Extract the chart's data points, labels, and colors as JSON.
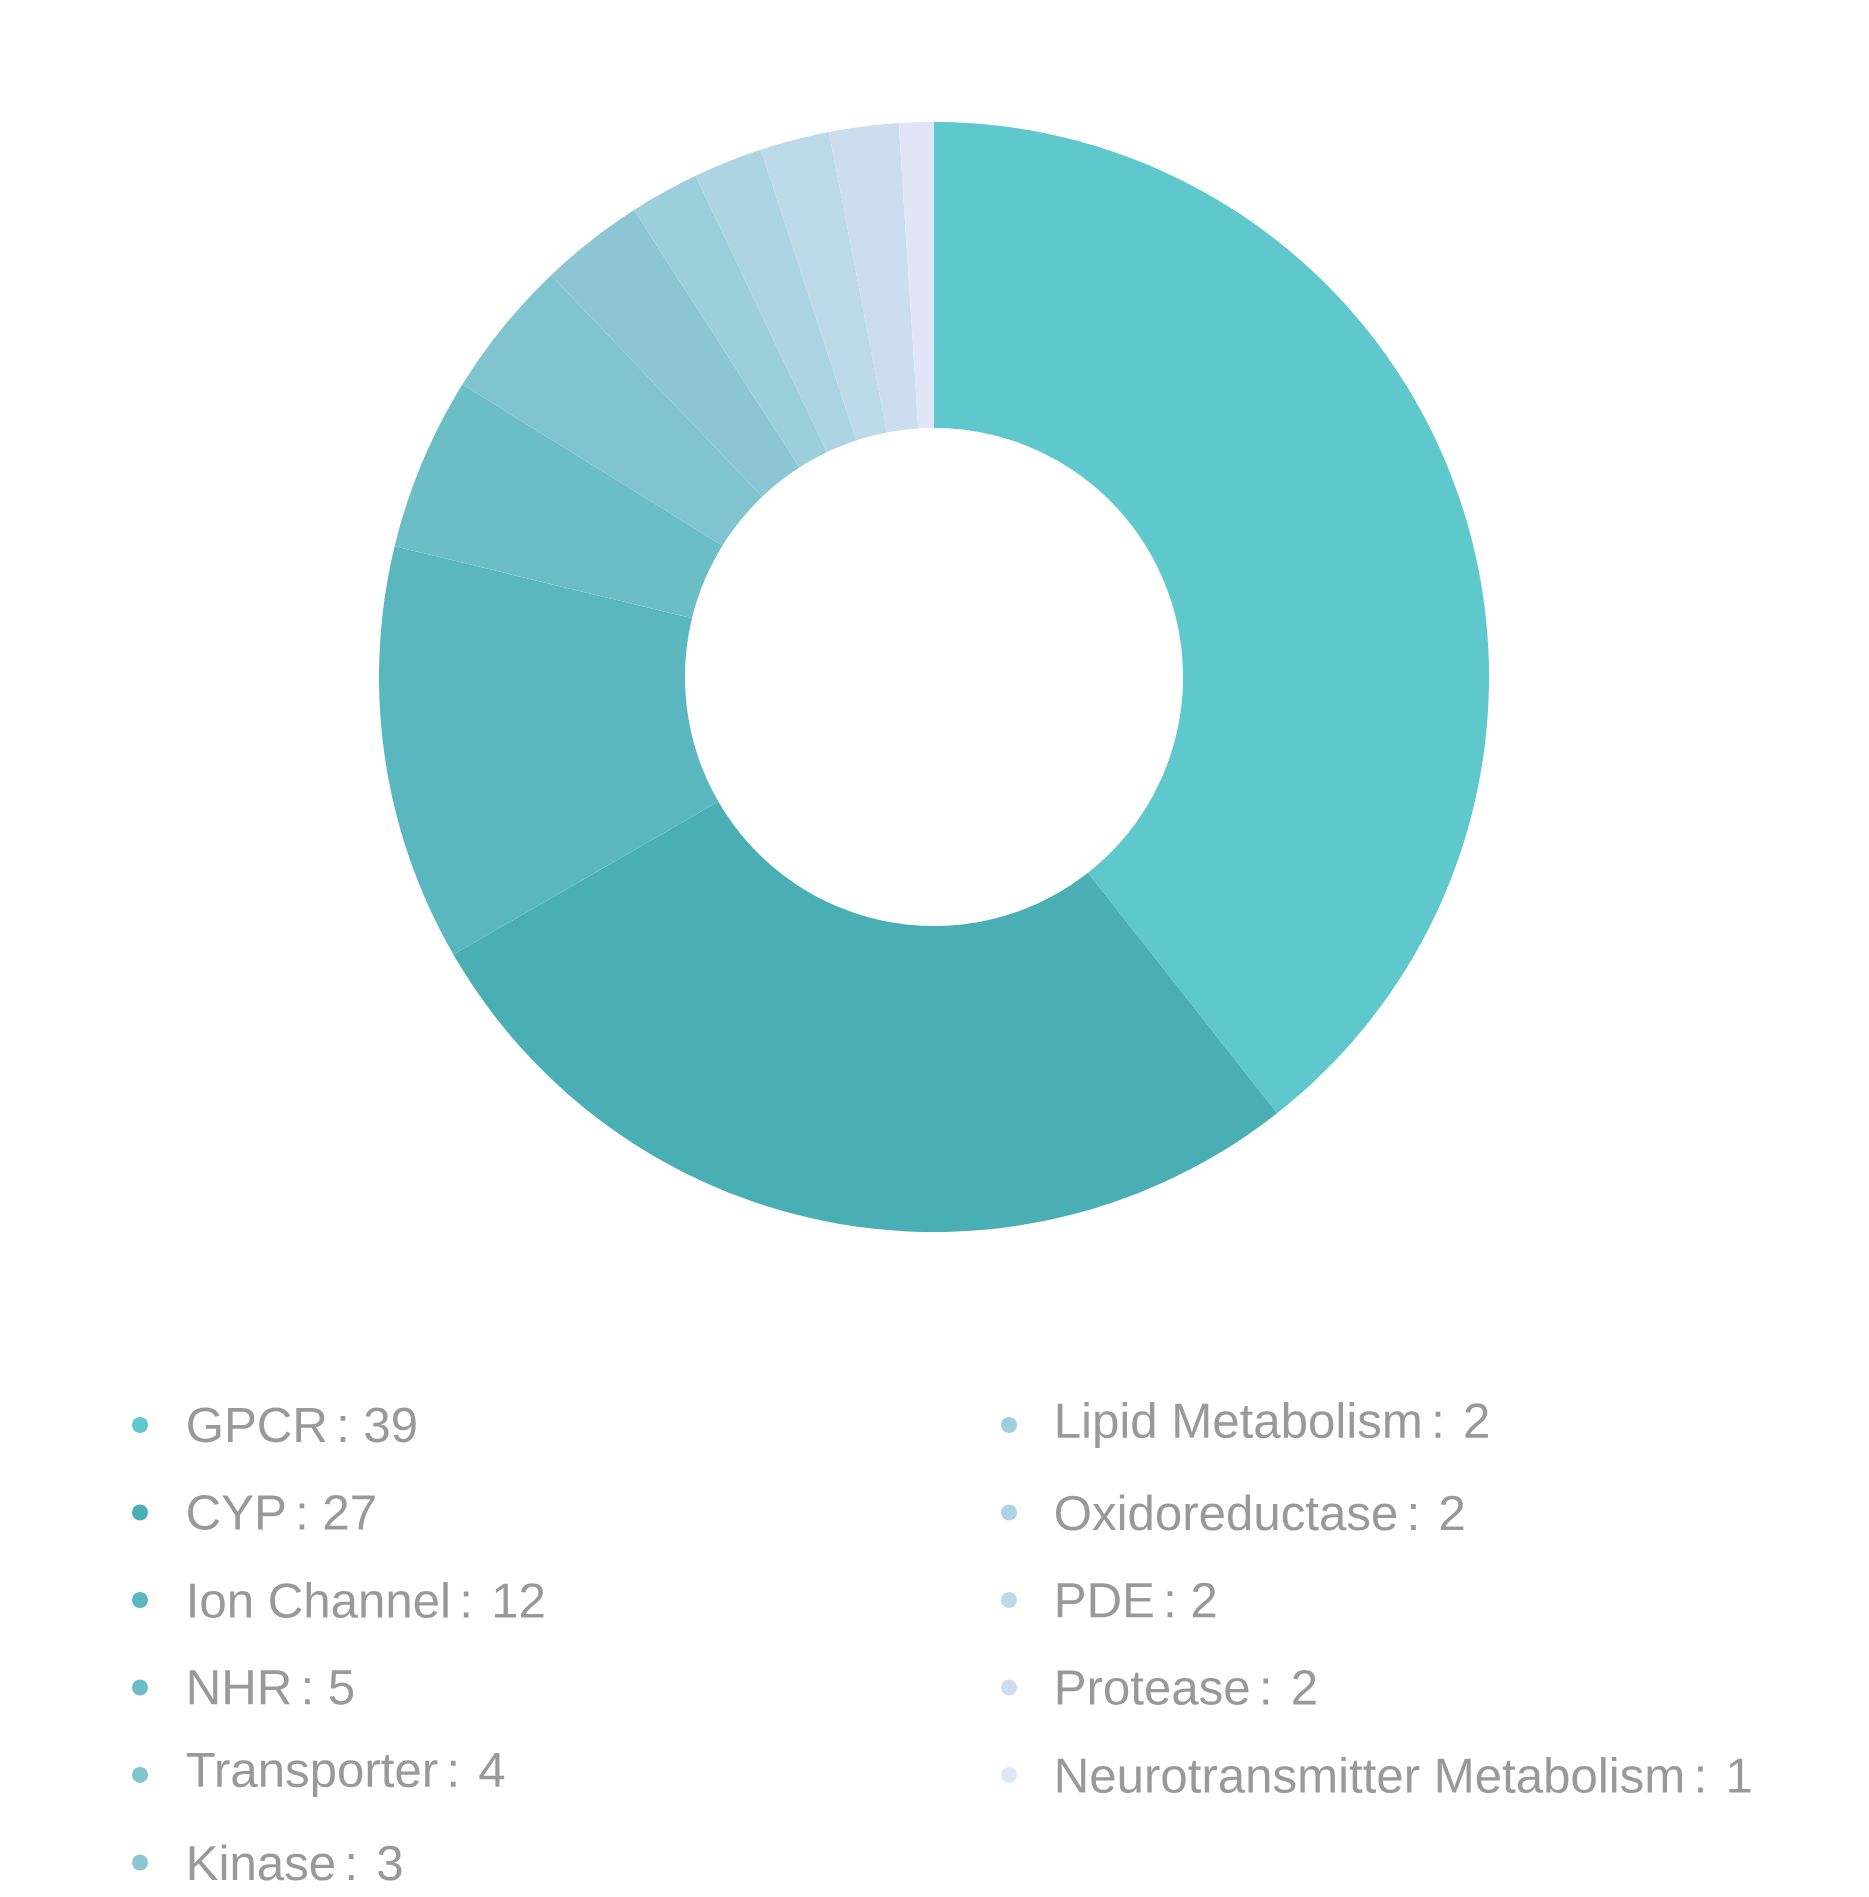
{
  "chart_data": {
    "type": "donut",
    "categories": [
      "GPCR",
      "CYP",
      "Ion Channel",
      "NHR",
      "Transporter",
      "Kinase",
      "Lipid Metabolism",
      "Oxidoreductase",
      "PDE",
      "Protease",
      "Neurotransmitter Metabolism"
    ],
    "values": [
      39,
      27,
      12,
      5,
      4,
      3,
      2,
      2,
      2,
      2,
      1
    ],
    "value_labels": [
      ": 39",
      ": 27",
      ": 12",
      ": 5",
      ": 4",
      ": 3",
      ": 2",
      ": 2",
      ": 2",
      ": 2",
      ": 1"
    ],
    "colors": [
      "#5fc8cd",
      "#4aafb5",
      "#5bb7bf",
      "#6bbec6",
      "#7fc4ce",
      "#8dc6d3",
      "#9ccfdc",
      "#add4e2",
      "#bcdaea",
      "#ccddef",
      "#e0e6f7"
    ],
    "legend": "bottom"
  }
}
